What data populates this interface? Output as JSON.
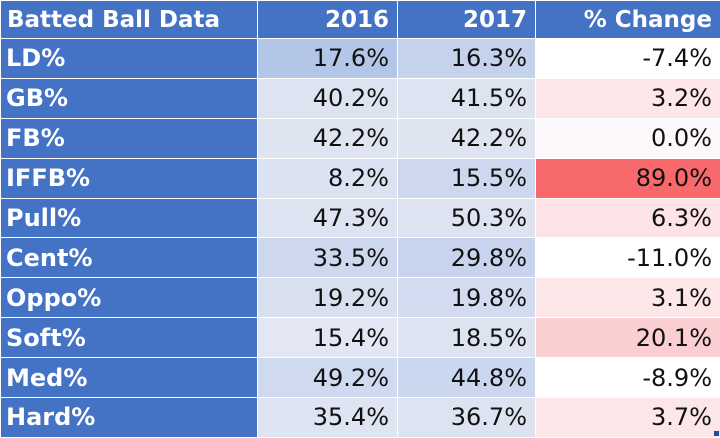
{
  "table": {
    "headers": [
      "Batted Ball Data",
      "2016",
      "2017",
      "% Change"
    ],
    "rows": [
      {
        "label": "LD%",
        "y2016": "17.6%",
        "y2017": "16.3%",
        "change": "-7.4%",
        "bg2016": "#b4c6e7",
        "bg2017": "#c4d2ec",
        "bgChange": "#ffffff"
      },
      {
        "label": "GB%",
        "y2016": "40.2%",
        "y2017": "41.5%",
        "change": "3.2%",
        "bg2016": "#dde3f1",
        "bg2017": "#dde3f1",
        "bgChange": "#fde6e8"
      },
      {
        "label": "FB%",
        "y2016": "42.2%",
        "y2017": "42.2%",
        "change": "0.0%",
        "bg2016": "#dfe4f1",
        "bg2017": "#dfe4f1",
        "bgChange": "#fbf7fa"
      },
      {
        "label": "IFFB%",
        "y2016": "8.2%",
        "y2017": "15.5%",
        "change": "89.0%",
        "bg2016": "#dbe2f2",
        "bg2017": "#cdd8ef",
        "bgChange": "#f8696b"
      },
      {
        "label": "Pull%",
        "y2016": "47.3%",
        "y2017": "50.3%",
        "change": "6.3%",
        "bg2016": "#dee3f1",
        "bg2017": "#dde3f1",
        "bgChange": "#fde3e5"
      },
      {
        "label": "Cent%",
        "y2016": "33.5%",
        "y2017": "29.8%",
        "change": "-11.0%",
        "bg2016": "#cdd7ed",
        "bg2017": "#c8d4ed",
        "bgChange": "#ffffff"
      },
      {
        "label": "Oppo%",
        "y2016": "19.2%",
        "y2017": "19.8%",
        "change": "3.1%",
        "bg2016": "#d8dfef",
        "bg2017": "#d2dbef",
        "bgChange": "#fce6e8"
      },
      {
        "label": "Soft%",
        "y2016": "15.4%",
        "y2017": "18.5%",
        "change": "20.1%",
        "bg2016": "#e3e7f3",
        "bg2017": "#dde3f1",
        "bgChange": "#fbcfd2"
      },
      {
        "label": "Med%",
        "y2016": "49.2%",
        "y2017": "44.8%",
        "change": "-8.9%",
        "bg2016": "#cfd9ef",
        "bg2017": "#cbd6ef",
        "bgChange": "#ffffff"
      },
      {
        "label": "Hard%",
        "y2016": "35.4%",
        "y2017": "36.7%",
        "change": "3.7%",
        "bg2016": "#dfe4f2",
        "bg2017": "#dde3f1",
        "bgChange": "#fce6e8"
      }
    ]
  },
  "colors": {
    "header_bg": "#4472c4",
    "header_text": "#ffffff"
  }
}
